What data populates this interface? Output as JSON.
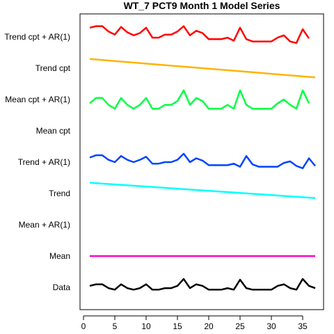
{
  "chart_data": {
    "type": "line",
    "title": "WT_7 PCT9 Month 1 Model Series",
    "xlabel": "",
    "ylabel": "",
    "xlim": [
      0,
      38
    ],
    "x_ticks": [
      0,
      5,
      10,
      15,
      20,
      25,
      30,
      35
    ],
    "rows": [
      "Data",
      "Mean",
      "Mean + AR(1)",
      "Trend",
      "Trend + AR(1)",
      "Mean cpt",
      "Mean cpt + AR(1)",
      "Trend cpt",
      "Trend cpt + AR(1)"
    ],
    "series": [
      {
        "name": "Data",
        "row": "Data",
        "color": "#000000",
        "x": [
          1,
          2,
          3,
          4,
          5,
          6,
          7,
          8,
          9,
          10,
          11,
          12,
          13,
          14,
          15,
          16,
          17,
          18,
          19,
          20,
          21,
          22,
          23,
          24,
          25,
          26,
          27,
          28,
          29,
          30,
          31,
          32,
          33,
          34,
          35,
          36,
          37
        ],
        "values": [
          2,
          4,
          4,
          -1,
          -3,
          4,
          -1,
          -3,
          -1,
          4,
          -3,
          -3,
          -1,
          -1,
          2,
          11,
          -1,
          4,
          2,
          -3,
          -3,
          -3,
          -1,
          -3,
          10,
          -1,
          -3,
          -3,
          -3,
          -3,
          2,
          4,
          -1,
          -3,
          11,
          2,
          -1
        ]
      },
      {
        "name": "Mean",
        "row": "Mean",
        "color": "#ff00cc",
        "x": [
          1,
          37
        ],
        "values": [
          0,
          0
        ]
      },
      {
        "name": "Trend",
        "row": "Trend",
        "color": "#00ffff",
        "x": [
          1,
          37
        ],
        "values": [
          14,
          -6
        ]
      },
      {
        "name": "Trend + AR(1)",
        "row": "Trend + AR(1)",
        "color": "#0044ff",
        "x": [
          1,
          2,
          3,
          4,
          5,
          6,
          7,
          8,
          9,
          10,
          11,
          12,
          13,
          14,
          15,
          16,
          17,
          18,
          19,
          20,
          21,
          22,
          23,
          24,
          25,
          26,
          27,
          28,
          29,
          30,
          31,
          32,
          33,
          34,
          35,
          36,
          37
        ],
        "values": [
          6,
          9,
          9,
          3,
          0,
          8,
          3,
          0,
          3,
          7,
          -2,
          -2,
          0,
          0,
          3,
          11,
          0,
          5,
          2,
          -4,
          -4,
          -4,
          -4,
          -2,
          -6,
          8,
          -3,
          -6,
          -6,
          -6,
          -6,
          -1,
          1,
          -5,
          -8,
          5,
          -5
        ]
      },
      {
        "name": "Mean cpt + AR(1)",
        "row": "Mean cpt + AR(1)",
        "color": "#00ff44",
        "x": [
          1,
          2,
          3,
          4,
          5,
          6,
          7,
          8,
          9,
          10,
          11,
          12,
          13,
          14,
          15,
          16,
          17,
          18,
          19,
          20,
          21,
          22,
          23,
          24,
          25,
          26,
          27,
          28,
          29,
          30,
          31,
          32,
          33,
          34,
          35,
          36
        ],
        "values": [
          -5,
          2,
          2,
          -7,
          -12,
          2,
          -7,
          -12,
          -7,
          2,
          -12,
          -12,
          -7,
          -7,
          -2,
          12,
          -7,
          2,
          -2,
          -12,
          -12,
          -12,
          -7,
          -12,
          12,
          -7,
          -12,
          -12,
          -12,
          -12,
          -5,
          0,
          -7,
          -12,
          12,
          -5
        ]
      },
      {
        "name": "Trend cpt",
        "row": "Trend cpt",
        "color": "#ffb300",
        "x": [
          1,
          37
        ],
        "values": [
          12,
          -12
        ]
      },
      {
        "name": "Trend cpt + AR(1)",
        "row": "Trend cpt + AR(1)",
        "color": "#ff0000",
        "x": [
          1,
          2,
          3,
          4,
          5,
          6,
          7,
          8,
          9,
          10,
          11,
          12,
          13,
          14,
          15,
          16,
          17,
          18,
          19,
          20,
          21,
          22,
          23,
          24,
          25,
          26,
          27,
          28,
          29,
          30,
          31,
          32,
          33,
          34,
          35,
          36
        ],
        "values": [
          12,
          14,
          14,
          7,
          3,
          13,
          6,
          2,
          5,
          12,
          -1,
          -1,
          3,
          3,
          7,
          14,
          2,
          8,
          5,
          -3,
          -3,
          -3,
          -1,
          -5,
          12,
          -3,
          -6,
          -6,
          -6,
          -6,
          -1,
          2,
          -6,
          -8,
          10,
          -2
        ]
      }
    ]
  }
}
